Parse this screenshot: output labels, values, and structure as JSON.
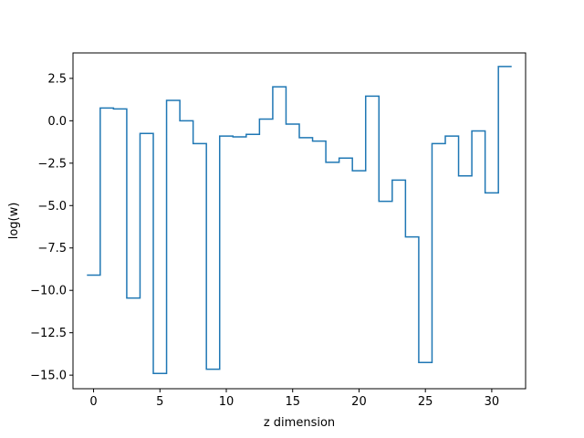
{
  "chart_data": {
    "type": "line",
    "drawstyle": "steps-mid",
    "title": "",
    "xlabel": "z dimension",
    "ylabel": "log(w)",
    "xlim": [
      -1.55,
      32.55
    ],
    "ylim": [
      -15.8,
      4.0
    ],
    "xticks": [
      0,
      5,
      10,
      15,
      20,
      25,
      30
    ],
    "xtick_labels": [
      "0",
      "5",
      "10",
      "15",
      "20",
      "25",
      "30"
    ],
    "yticks": [
      2.5,
      0.0,
      -2.5,
      -5.0,
      -7.5,
      -10.0,
      -12.5,
      -15.0
    ],
    "ytick_labels": [
      "2.5",
      "0.0",
      "−2.5",
      "−5.0",
      "−7.5",
      "−10.0",
      "−12.5",
      "−15.0"
    ],
    "grid": false,
    "series": [
      {
        "color": "#1f77b4",
        "x": [
          0,
          1,
          2,
          3,
          4,
          5,
          6,
          7,
          8,
          9,
          10,
          11,
          12,
          13,
          14,
          15,
          16,
          17,
          18,
          19,
          20,
          21,
          22,
          23,
          24,
          25,
          26,
          27,
          28,
          29,
          30,
          31
        ],
        "values": [
          -9.1,
          0.75,
          0.7,
          -10.45,
          -0.75,
          -14.9,
          1.2,
          0.0,
          -1.35,
          -14.65,
          -0.9,
          -0.95,
          -0.8,
          0.1,
          2.0,
          -0.2,
          -1.0,
          -1.2,
          -2.45,
          -2.2,
          -2.95,
          1.45,
          -4.75,
          -3.5,
          -6.85,
          -14.25,
          -1.35,
          -0.9,
          -3.25,
          -0.6,
          -4.25,
          3.2
        ]
      }
    ]
  }
}
